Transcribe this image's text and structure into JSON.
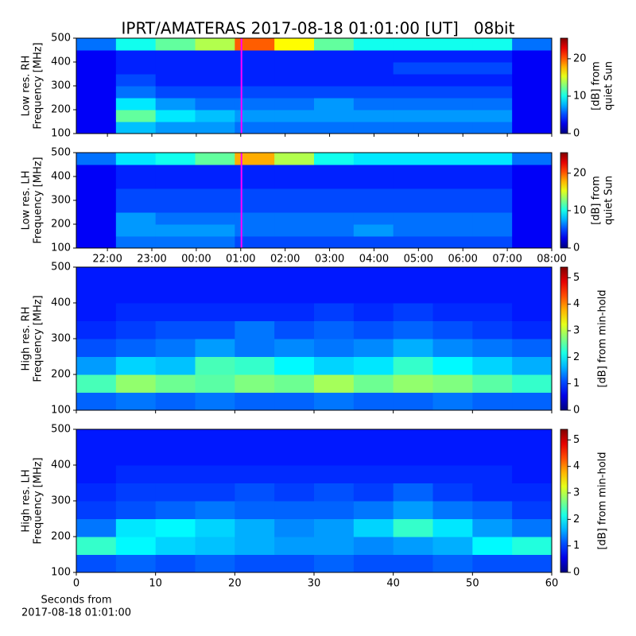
{
  "title": "IPRT/AMATERAS 2017-08-18 01:01:00 [UT]   08bit",
  "chart_data": [
    {
      "type": "heatmap",
      "colormap": "jet",
      "ylabel": [
        "Low res. RH",
        "Frequency [MHz]"
      ],
      "colorbar_label": [
        "[dB] from",
        "quiet Sun"
      ],
      "xlim": [
        21.3,
        32
      ],
      "xticks": [
        22,
        23,
        24,
        25,
        26,
        27,
        28,
        29,
        30,
        31,
        32
      ],
      "show_xticklabels": false,
      "ylim": [
        100,
        500
      ],
      "yticks": [
        100,
        200,
        300,
        400,
        500
      ],
      "clim": [
        0,
        25.5
      ],
      "cticks": [
        0,
        10,
        20
      ],
      "marker": {
        "x": 25.017,
        "color": "#ff00ff"
      },
      "z": [
        [
          3,
          8,
          7,
          7,
          6,
          6,
          6,
          6,
          6,
          6,
          6,
          3
        ],
        [
          3,
          12,
          9,
          8,
          7,
          7,
          7,
          7,
          7,
          7,
          7,
          3
        ],
        [
          3,
          9,
          7,
          6,
          6,
          6,
          7,
          6,
          6,
          6,
          6,
          3
        ],
        [
          3,
          6,
          5,
          5,
          5,
          5,
          5,
          5,
          5,
          5,
          5,
          3
        ],
        [
          3,
          5,
          4,
          4,
          4,
          4,
          4,
          4,
          4,
          4,
          4,
          3
        ],
        [
          3,
          4,
          4,
          4,
          4,
          4,
          4,
          4,
          5,
          5,
          5,
          3
        ],
        [
          3,
          4,
          4,
          4,
          4,
          4,
          4,
          4,
          4,
          4,
          4,
          3
        ],
        [
          6,
          10,
          12,
          14,
          20,
          16,
          12,
          10,
          10,
          10,
          10,
          6
        ]
      ]
    },
    {
      "type": "heatmap",
      "colormap": "jet",
      "ylabel": [
        "Low res. LH",
        "Frequency [MHz]"
      ],
      "colorbar_label": [
        "[dB] from",
        "quiet Sun"
      ],
      "xlim": [
        21.3,
        32
      ],
      "xticks": [
        {
          "value": 22,
          "label": "22:00"
        },
        {
          "value": 23,
          "label": "23:00"
        },
        {
          "value": 24,
          "label": "00:00"
        },
        {
          "value": 25,
          "label": "01:00"
        },
        {
          "value": 26,
          "label": "02:00"
        },
        {
          "value": 27,
          "label": "03:00"
        },
        {
          "value": 28,
          "label": "04:00"
        },
        {
          "value": 29,
          "label": "05:00"
        },
        {
          "value": 30,
          "label": "06:00"
        },
        {
          "value": 31,
          "label": "07:00"
        },
        {
          "value": 32,
          "label": "08:00"
        }
      ],
      "show_xticklabels": true,
      "ylim": [
        100,
        500
      ],
      "yticks": [
        100,
        200,
        300,
        400,
        500
      ],
      "clim": [
        0,
        25.5
      ],
      "cticks": [
        0,
        10,
        20
      ],
      "marker": {
        "x": 25.017,
        "color": "#ff00ff"
      },
      "z": [
        [
          3,
          6,
          6,
          6,
          5,
          5,
          5,
          5,
          5,
          5,
          5,
          3
        ],
        [
          3,
          7,
          7,
          7,
          6,
          6,
          6,
          7,
          6,
          6,
          6,
          3
        ],
        [
          3,
          7,
          6,
          6,
          6,
          6,
          6,
          6,
          6,
          6,
          6,
          3
        ],
        [
          3,
          5,
          5,
          5,
          5,
          5,
          5,
          5,
          5,
          5,
          5,
          3
        ],
        [
          3,
          5,
          5,
          5,
          5,
          5,
          5,
          5,
          5,
          5,
          5,
          3
        ],
        [
          3,
          4,
          4,
          4,
          4,
          4,
          4,
          4,
          4,
          4,
          4,
          3
        ],
        [
          3,
          4,
          4,
          4,
          4,
          4,
          4,
          4,
          4,
          4,
          4,
          3
        ],
        [
          6,
          9,
          10,
          12,
          18,
          14,
          10,
          9,
          9,
          9,
          9,
          6
        ]
      ]
    },
    {
      "type": "heatmap",
      "colormap": "jet",
      "ylabel": [
        "High res. RH",
        "Frequency [MHz]"
      ],
      "colorbar_label": [
        "[dB] from min-hold"
      ],
      "xlim": [
        0,
        60
      ],
      "xticks": [
        0,
        10,
        20,
        30,
        40,
        50,
        60
      ],
      "show_xticklabels": false,
      "ylim": [
        100,
        500
      ],
      "yticks": [
        100,
        200,
        300,
        400,
        500
      ],
      "clim": [
        0,
        5.4
      ],
      "cticks": [
        0,
        1,
        2,
        3,
        4,
        5
      ],
      "z": [
        [
          1.2,
          1.3,
          1.2,
          1.3,
          1.2,
          1.2,
          1.3,
          1.2,
          1.2,
          1.3,
          1.2,
          1.2
        ],
        [
          2.4,
          2.8,
          2.6,
          2.5,
          2.7,
          2.6,
          2.9,
          2.6,
          2.8,
          2.7,
          2.5,
          2.3
        ],
        [
          1.5,
          1.8,
          1.7,
          2.4,
          2.3,
          2.0,
          1.8,
          1.9,
          2.3,
          2.0,
          1.8,
          1.6
        ],
        [
          1.1,
          1.2,
          1.3,
          1.5,
          1.3,
          1.4,
          1.3,
          1.4,
          1.6,
          1.4,
          1.3,
          1.2
        ],
        [
          0.9,
          1.0,
          1.1,
          1.1,
          1.3,
          1.1,
          1.2,
          1.1,
          1.2,
          1.1,
          1.0,
          0.9
        ],
        [
          0.8,
          0.9,
          0.9,
          0.9,
          0.9,
          0.9,
          1.0,
          0.9,
          1.0,
          0.9,
          0.9,
          0.8
        ],
        [
          0.8,
          0.8,
          0.8,
          0.8,
          0.8,
          0.8,
          0.8,
          0.8,
          0.8,
          0.8,
          0.8,
          0.8
        ],
        [
          0.8,
          0.8,
          0.8,
          0.8,
          0.8,
          0.8,
          0.8,
          0.8,
          0.8,
          0.8,
          0.8,
          0.8
        ]
      ]
    },
    {
      "type": "heatmap",
      "colormap": "jet",
      "ylabel": [
        "High res. LH",
        "Frequency [MHz]"
      ],
      "colorbar_label": [
        "[dB] from min-hold"
      ],
      "xlim": [
        0,
        60
      ],
      "xticks": [
        0,
        10,
        20,
        30,
        40,
        50,
        60
      ],
      "show_xticklabels": true,
      "xlabel": [
        "Seconds from",
        "2017-08-18 01:01:00"
      ],
      "ylim": [
        100,
        500
      ],
      "yticks": [
        100,
        200,
        300,
        400,
        500
      ],
      "clim": [
        0,
        5.4
      ],
      "cticks": [
        0,
        1,
        2,
        3,
        4,
        5
      ],
      "z": [
        [
          1.1,
          1.2,
          1.1,
          1.2,
          1.1,
          1.1,
          1.2,
          1.1,
          1.1,
          1.2,
          1.1,
          1.1
        ],
        [
          2.3,
          2.0,
          1.8,
          1.7,
          1.6,
          1.5,
          1.5,
          1.4,
          1.5,
          1.6,
          2.0,
          2.2
        ],
        [
          1.3,
          1.9,
          2.0,
          1.8,
          1.6,
          1.4,
          1.5,
          1.8,
          2.3,
          1.9,
          1.5,
          1.3
        ],
        [
          1.0,
          1.1,
          1.2,
          1.3,
          1.2,
          1.2,
          1.2,
          1.3,
          1.5,
          1.3,
          1.2,
          1.0
        ],
        [
          0.9,
          1.0,
          1.0,
          1.0,
          1.1,
          1.0,
          1.1,
          1.0,
          1.2,
          1.0,
          0.9,
          0.9
        ],
        [
          0.8,
          0.9,
          0.9,
          0.9,
          0.9,
          0.9,
          0.9,
          0.9,
          0.9,
          0.9,
          0.9,
          0.8
        ],
        [
          0.8,
          0.8,
          0.8,
          0.8,
          0.8,
          0.8,
          0.8,
          0.8,
          0.8,
          0.8,
          0.8,
          0.8
        ],
        [
          0.8,
          0.8,
          0.8,
          0.8,
          0.8,
          0.8,
          0.8,
          0.8,
          0.8,
          0.8,
          0.8,
          0.8
        ]
      ]
    }
  ]
}
